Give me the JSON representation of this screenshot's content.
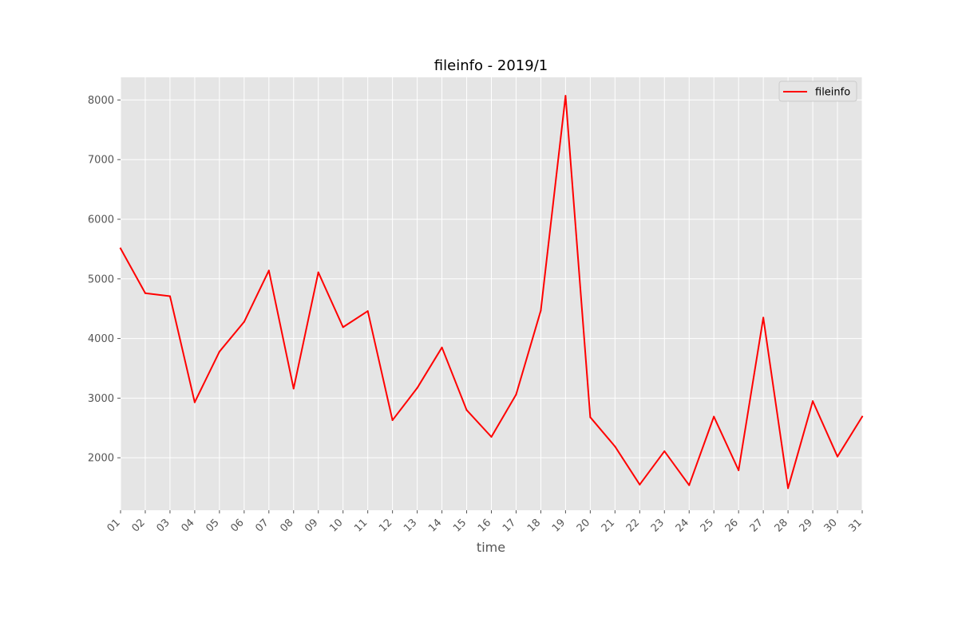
{
  "chart_data": {
    "type": "line",
    "title": "fileinfo - 2019/1",
    "xlabel": "time",
    "ylabel": "",
    "categories": [
      "01",
      "02",
      "03",
      "04",
      "05",
      "06",
      "07",
      "08",
      "09",
      "10",
      "11",
      "12",
      "13",
      "14",
      "15",
      "16",
      "17",
      "18",
      "19",
      "20",
      "21",
      "22",
      "23",
      "24",
      "25",
      "26",
      "27",
      "28",
      "29",
      "30",
      "31"
    ],
    "series": [
      {
        "name": "fileinfo",
        "color": "#ff0000",
        "values": [
          5510,
          4760,
          4710,
          2930,
          3780,
          4280,
          5140,
          3160,
          5110,
          4190,
          4460,
          2630,
          3170,
          3850,
          2800,
          2350,
          3060,
          4470,
          8070,
          2680,
          2190,
          1550,
          2110,
          1540,
          2690,
          1790,
          4350,
          1490,
          2950,
          2020,
          2690
        ]
      }
    ],
    "yticks": [
      2000,
      3000,
      4000,
      5000,
      6000,
      7000,
      8000
    ],
    "ylim": [
      1120,
      8380
    ],
    "grid": true,
    "legend_position": "top-right",
    "style": {
      "plot_background": "#e5e5e5",
      "grid_color": "#ffffff",
      "tick_label_color": "#555555",
      "title_color": "#000000"
    }
  }
}
